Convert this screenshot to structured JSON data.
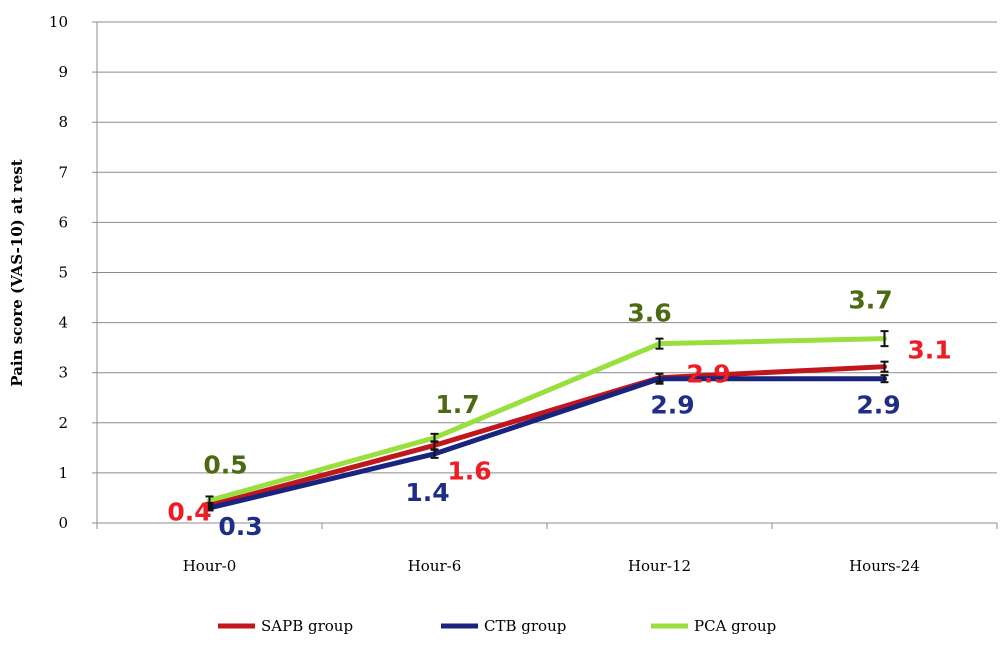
{
  "chart_data": {
    "type": "line",
    "title": "",
    "xlabel": "",
    "ylabel": "Pain score (VAS-10) at rest",
    "ylim": [
      0,
      10
    ],
    "yticks": [
      "0",
      "1",
      "2",
      "3",
      "4",
      "5",
      "6",
      "7",
      "8",
      "9",
      "10"
    ],
    "categories": [
      "Hour-0",
      "Hour-6",
      "Hour-12",
      "Hours-24"
    ],
    "grid": true,
    "legend_position": "bottom",
    "series": [
      {
        "name": "SAPB group",
        "color": "#c0161c",
        "label_color": "#ee1c25",
        "values": [
          0.35,
          1.55,
          2.9,
          3.12
        ],
        "labels": [
          "0.4",
          "1.6",
          "2.9",
          "3.1"
        ],
        "error": [
          0.05,
          0.08,
          0.08,
          0.1
        ]
      },
      {
        "name": "CTB group",
        "color": "#1a237e",
        "label_color": "#1f2d86",
        "values": [
          0.3,
          1.38,
          2.88,
          2.88
        ],
        "labels": [
          "0.3",
          "1.4",
          "2.9",
          "2.9"
        ],
        "error": [
          0.05,
          0.08,
          0.1,
          0.07
        ]
      },
      {
        "name": "PCA group",
        "color": "#99e03f",
        "label_color": "#4b6a12",
        "values": [
          0.45,
          1.7,
          3.58,
          3.68
        ],
        "labels": [
          "0.5",
          "1.7",
          "3.6",
          "3.7"
        ],
        "error": [
          0.08,
          0.08,
          0.1,
          0.15
        ]
      }
    ]
  }
}
